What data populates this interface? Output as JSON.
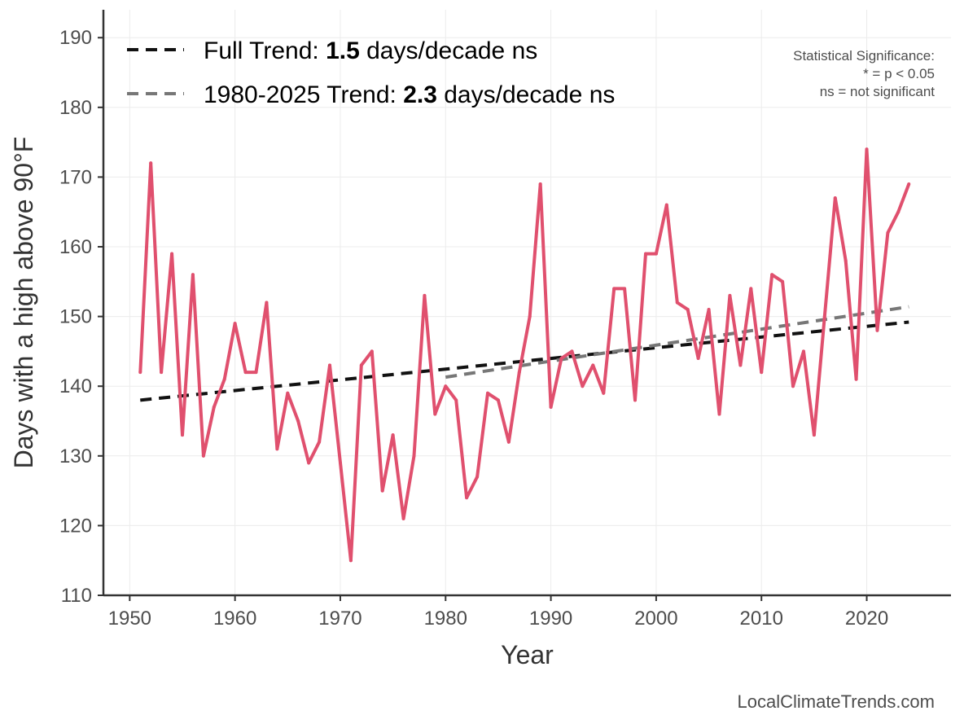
{
  "chart_data": {
    "type": "line",
    "xlabel": "Year",
    "ylabel": "Days with a high above 90°F",
    "xlim": [
      1947.5,
      2028
    ],
    "ylim": [
      110,
      194
    ],
    "x_ticks": [
      1950,
      1960,
      1970,
      1980,
      1990,
      2000,
      2010,
      2020
    ],
    "y_ticks": [
      110,
      120,
      130,
      140,
      150,
      160,
      170,
      180,
      190
    ],
    "grid": true,
    "legend_position": "top-left",
    "series": [
      {
        "color": "#e0506e",
        "x": [
          1951,
          1952,
          1953,
          1954,
          1955,
          1956,
          1957,
          1958,
          1959,
          1960,
          1961,
          1962,
          1963,
          1964,
          1965,
          1966,
          1967,
          1968,
          1969,
          1970,
          1971,
          1972,
          1973,
          1974,
          1975,
          1976,
          1977,
          1978,
          1979,
          1980,
          1981,
          1982,
          1983,
          1984,
          1985,
          1986,
          1987,
          1988,
          1989,
          1990,
          1991,
          1992,
          1993,
          1994,
          1995,
          1996,
          1997,
          1998,
          1999,
          2000,
          2001,
          2002,
          2003,
          2004,
          2005,
          2006,
          2007,
          2008,
          2009,
          2010,
          2011,
          2012,
          2013,
          2014,
          2015,
          2016,
          2017,
          2018,
          2019,
          2020,
          2021,
          2022,
          2023,
          2024
        ],
        "values": [
          142,
          172,
          142,
          159,
          133,
          156,
          130,
          137,
          141,
          149,
          142,
          142,
          152,
          131,
          139,
          135,
          129,
          132,
          143,
          129,
          115,
          143,
          145,
          125,
          133,
          121,
          130,
          153,
          136,
          140,
          138,
          124,
          127,
          139,
          138,
          132,
          142,
          150,
          169,
          137,
          144,
          145,
          140,
          143,
          139,
          154,
          154,
          138,
          159,
          159,
          166,
          152,
          151,
          144,
          151,
          136,
          153,
          143,
          154,
          142,
          156,
          155,
          140,
          145,
          133,
          150,
          167,
          158,
          141,
          174,
          148,
          162,
          165,
          169
        ]
      }
    ],
    "trend_lines": [
      {
        "name_prefix": "Full Trend: ",
        "value": "1.5",
        "name_suffix": " days/decade ns",
        "color": "#111111",
        "x": [
          1951,
          2024
        ],
        "y": [
          138.0,
          149.2
        ]
      },
      {
        "name_prefix": "1980-2025 Trend: ",
        "value": "2.3",
        "name_suffix": " days/decade ns",
        "color": "#777777",
        "x": [
          1980,
          2024
        ],
        "y": [
          141.3,
          151.4
        ]
      }
    ],
    "annotation": [
      "Statistical Significance:",
      "* = p < 0.05",
      "ns = not significant"
    ],
    "credit": "LocalClimateTrends.com"
  }
}
